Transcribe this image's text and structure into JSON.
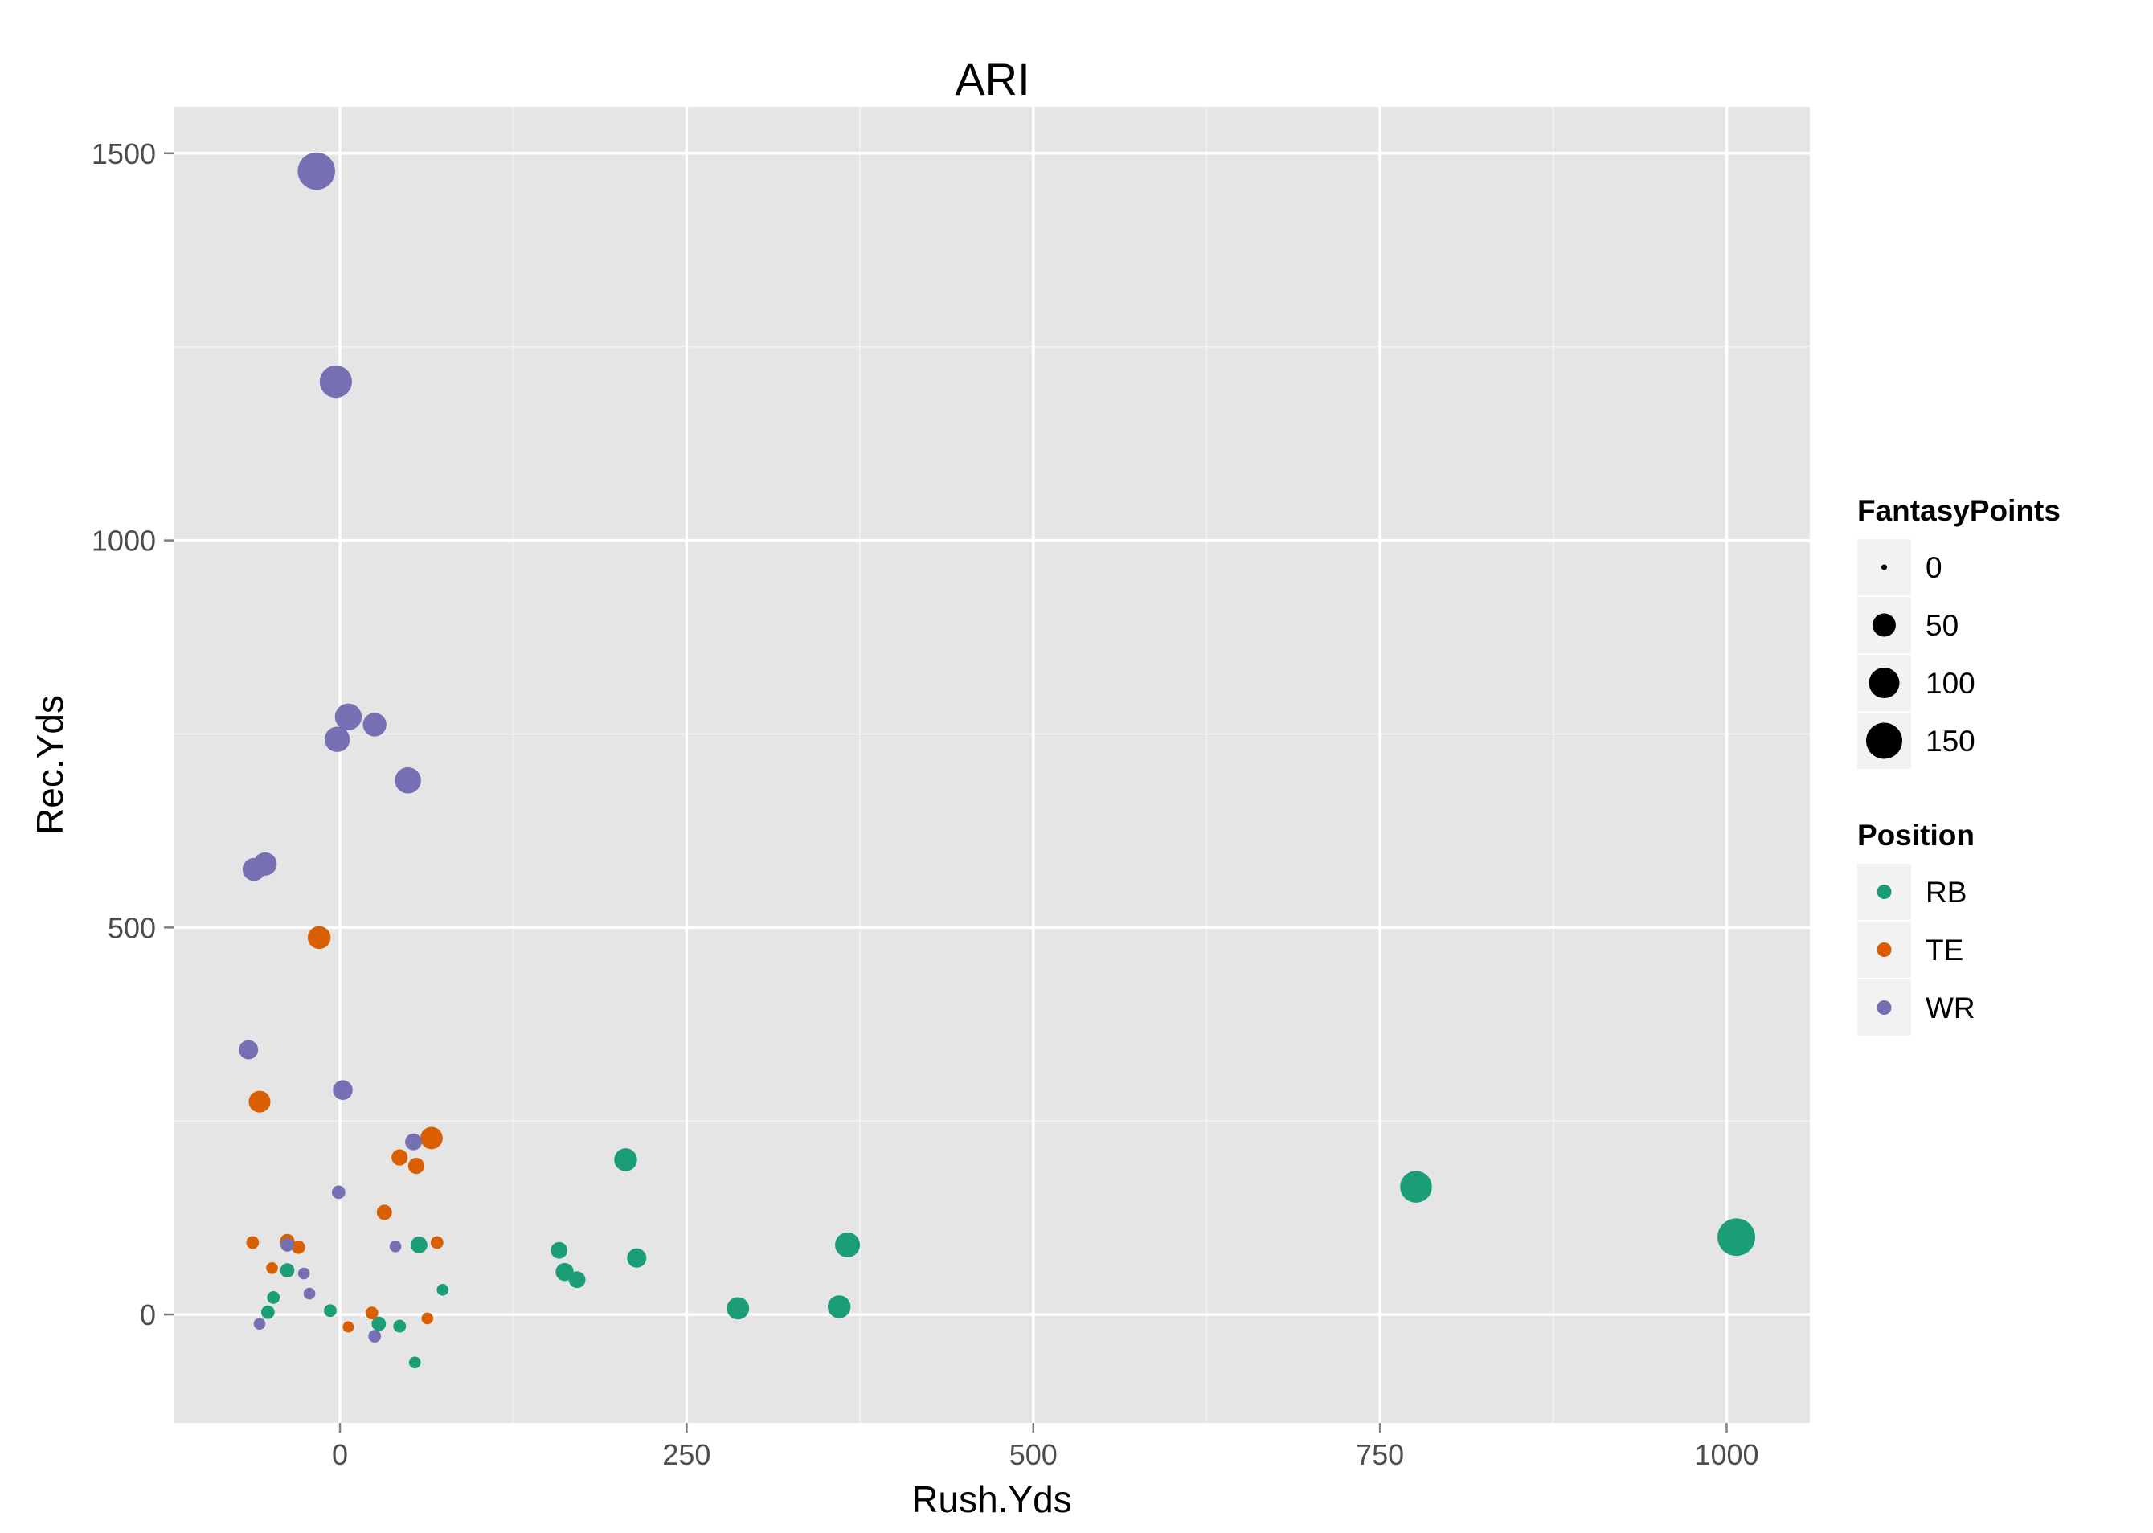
{
  "chart_data": {
    "type": "scatter",
    "title": "ARI",
    "xlabel": "Rush.Yds",
    "ylabel": "Rec.Yds",
    "xlim": [
      -120,
      1060
    ],
    "ylim": [
      -140,
      1560
    ],
    "x_ticks": [
      0,
      250,
      500,
      750,
      1000
    ],
    "y_ticks": [
      0,
      500,
      1000,
      1500
    ],
    "grid": true,
    "size_legend": {
      "title": "FantasyPoints",
      "breaks": [
        0,
        50,
        100,
        150
      ],
      "labels": [
        "0",
        "50",
        "100",
        "150"
      ]
    },
    "color_legend": {
      "title": "Position",
      "entries": [
        {
          "label": "RB",
          "color": "#1b9e77"
        },
        {
          "label": "TE",
          "color": "#d95f02"
        },
        {
          "label": "WR",
          "color": "#7570b3"
        }
      ]
    },
    "series": [
      {
        "name": "RB",
        "color": "#1b9e77",
        "points": [
          {
            "x": 1007,
            "y": 100,
            "size": 165
          },
          {
            "x": 776,
            "y": 165,
            "size": 110
          },
          {
            "x": 366,
            "y": 90,
            "size": 60
          },
          {
            "x": 360,
            "y": 10,
            "size": 48
          },
          {
            "x": 287,
            "y": 8,
            "size": 45
          },
          {
            "x": 206,
            "y": 200,
            "size": 48
          },
          {
            "x": 214,
            "y": 73,
            "size": 30
          },
          {
            "x": 158,
            "y": 83,
            "size": 20
          },
          {
            "x": 162,
            "y": 55,
            "size": 25
          },
          {
            "x": 171,
            "y": 45,
            "size": 20
          },
          {
            "x": 57,
            "y": 90,
            "size": 20
          },
          {
            "x": 74,
            "y": 32,
            "size": 6
          },
          {
            "x": 28,
            "y": -12,
            "size": 12
          },
          {
            "x": 43,
            "y": -15,
            "size": 8
          },
          {
            "x": 54,
            "y": -62,
            "size": 6
          },
          {
            "x": -38,
            "y": 57,
            "size": 12
          },
          {
            "x": -48,
            "y": 22,
            "size": 8
          },
          {
            "x": -52,
            "y": 3,
            "size": 10
          },
          {
            "x": -7,
            "y": 5,
            "size": 8
          }
        ]
      },
      {
        "name": "TE",
        "color": "#d95f02",
        "points": [
          {
            "x": -15,
            "y": 487,
            "size": 48
          },
          {
            "x": -58,
            "y": 275,
            "size": 42
          },
          {
            "x": 66,
            "y": 228,
            "size": 45
          },
          {
            "x": 43,
            "y": 203,
            "size": 18
          },
          {
            "x": 55,
            "y": 192,
            "size": 18
          },
          {
            "x": 32,
            "y": 132,
            "size": 15
          },
          {
            "x": 70,
            "y": 93,
            "size": 8
          },
          {
            "x": -63,
            "y": 93,
            "size": 8
          },
          {
            "x": -38,
            "y": 95,
            "size": 12
          },
          {
            "x": -30,
            "y": 87,
            "size": 10
          },
          {
            "x": -49,
            "y": 60,
            "size": 6
          },
          {
            "x": 23,
            "y": 2,
            "size": 8
          },
          {
            "x": 63,
            "y": -5,
            "size": 6
          },
          {
            "x": 6,
            "y": -16,
            "size": 5
          }
        ]
      },
      {
        "name": "WR",
        "color": "#7570b3",
        "points": [
          {
            "x": -17,
            "y": 1477,
            "size": 162
          },
          {
            "x": -3,
            "y": 1205,
            "size": 115
          },
          {
            "x": 6,
            "y": 772,
            "size": 72
          },
          {
            "x": 25,
            "y": 762,
            "size": 52
          },
          {
            "x": -2,
            "y": 743,
            "size": 62
          },
          {
            "x": 49,
            "y": 690,
            "size": 68
          },
          {
            "x": -54,
            "y": 582,
            "size": 50
          },
          {
            "x": -62,
            "y": 575,
            "size": 48
          },
          {
            "x": -66,
            "y": 342,
            "size": 30
          },
          {
            "x": 2,
            "y": 290,
            "size": 32
          },
          {
            "x": 53,
            "y": 223,
            "size": 20
          },
          {
            "x": -1,
            "y": 158,
            "size": 10
          },
          {
            "x": 40,
            "y": 88,
            "size": 6
          },
          {
            "x": -38,
            "y": 90,
            "size": 10
          },
          {
            "x": -26,
            "y": 53,
            "size": 6
          },
          {
            "x": -22,
            "y": 27,
            "size": 6
          },
          {
            "x": -58,
            "y": -12,
            "size": 6
          },
          {
            "x": 25,
            "y": -28,
            "size": 8
          }
        ]
      }
    ]
  }
}
